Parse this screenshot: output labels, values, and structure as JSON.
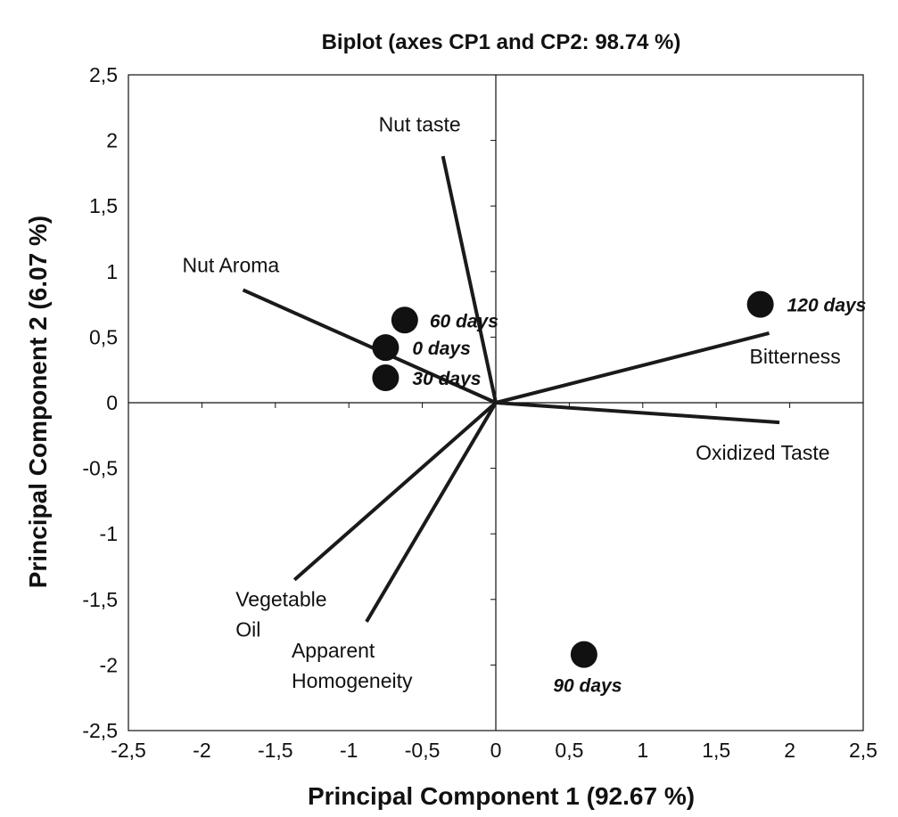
{
  "chart_data": {
    "type": "scatter",
    "subtype": "pca-biplot",
    "title": "Biplot (axes CP1 and CP2: 98.74 %)",
    "xlabel": "Principal Component 1 (92.67 %)",
    "ylabel": "Principal Component 2 (6.07 %)",
    "xlim": [
      -2.5,
      2.5
    ],
    "ylim": [
      -2.5,
      2.5
    ],
    "xticks": [
      -2.5,
      -2,
      -1.5,
      -1,
      -0.5,
      0,
      0.5,
      1,
      1.5,
      2,
      2.5
    ],
    "yticks": [
      -2.5,
      -2,
      -1.5,
      -1,
      -0.5,
      0,
      0.5,
      1,
      1.5,
      2,
      2.5
    ],
    "xtick_labels": [
      "-2,5",
      "-2",
      "-1,5",
      "-1",
      "-0,5",
      "0",
      "0,5",
      "1",
      "1,5",
      "2",
      "2,5"
    ],
    "ytick_labels": [
      "-2,5",
      "-2",
      "-1,5",
      "-1",
      "-0,5",
      "0",
      "0,5",
      "1",
      "1,5",
      "2",
      "2,5"
    ],
    "grid": false,
    "vectors": [
      {
        "name": "Nut taste",
        "lines": [
          "Nut taste"
        ],
        "x": -0.36,
        "y": 1.88
      },
      {
        "name": "Nut Aroma",
        "lines": [
          "Nut Aroma"
        ],
        "x": -1.72,
        "y": 0.86
      },
      {
        "name": "Bitterness",
        "lines": [
          "Bitterness"
        ],
        "x": 1.86,
        "y": 0.53
      },
      {
        "name": "Oxidized Taste",
        "lines": [
          "Oxidized Taste"
        ],
        "x": 1.93,
        "y": -0.15
      },
      {
        "name": "Vegetable Oil",
        "lines": [
          "Vegetable",
          "Oil"
        ],
        "x": -1.37,
        "y": -1.35
      },
      {
        "name": "Apparent Homogeneity",
        "lines": [
          "Apparent",
          "Homogeneity"
        ],
        "x": -0.88,
        "y": -1.67
      }
    ],
    "points": [
      {
        "label": "60 days",
        "x": -0.62,
        "y": 0.63
      },
      {
        "label": "0 days",
        "x": -0.75,
        "y": 0.42
      },
      {
        "label": "30 days",
        "x": -0.75,
        "y": 0.19
      },
      {
        "label": "120 days",
        "x": 1.8,
        "y": 0.75
      },
      {
        "label": "90 days",
        "x": 0.6,
        "y": -1.92
      }
    ]
  }
}
